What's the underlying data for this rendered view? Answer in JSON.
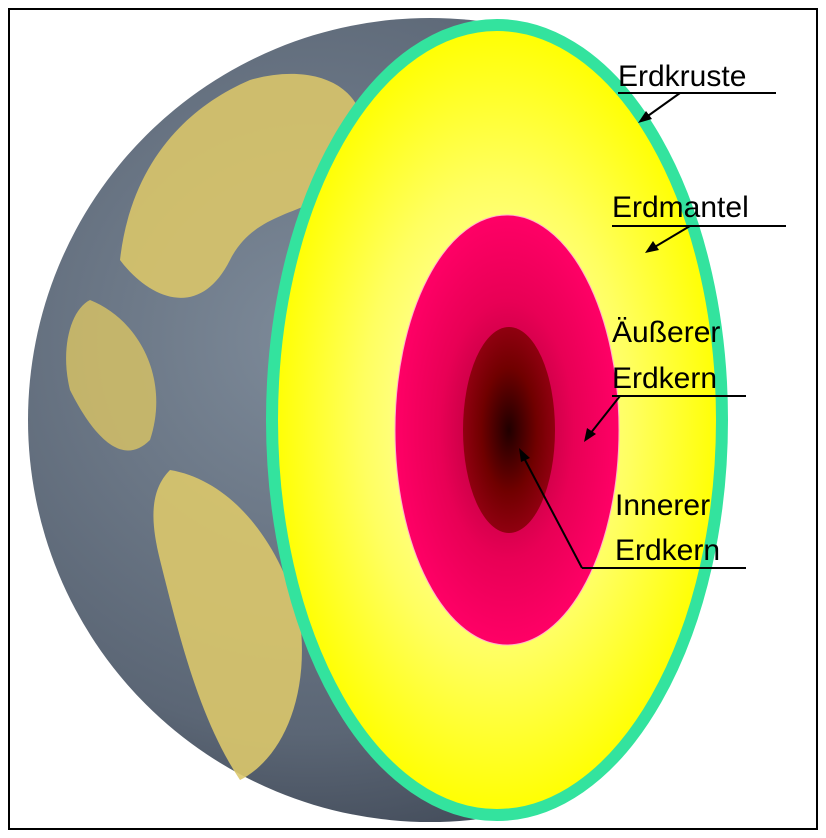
{
  "labels": [
    {
      "lines": [
        "Erdkruste"
      ]
    },
    {
      "lines": [
        "Erdmantel"
      ]
    },
    {
      "lines": [
        "Äußerer",
        "Erdkern"
      ]
    },
    {
      "lines": [
        "Innerer",
        "Erdkern"
      ]
    }
  ]
}
